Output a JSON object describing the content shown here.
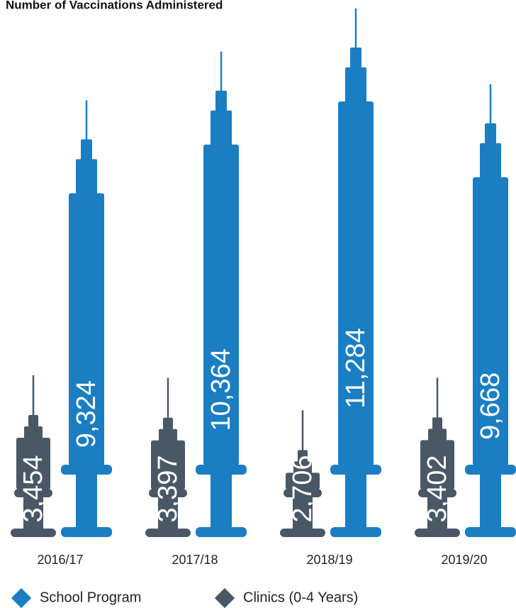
{
  "chart_data": {
    "type": "bar",
    "title": "Number of Vaccinations Administered",
    "categories": [
      "2016/17",
      "2017/18",
      "2018/19",
      "2019/20"
    ],
    "series": [
      {
        "name": "School Program",
        "color": "#1b7ec2",
        "values": [
          9324,
          10364,
          11284,
          9668
        ],
        "value_labels": [
          "9,324",
          "10,364",
          "11,284",
          "9,668"
        ]
      },
      {
        "name": "Clinics (0-4 Years)",
        "color": "#4a5866",
        "values": [
          3454,
          3397,
          2706,
          3402
        ],
        "value_labels": [
          "3,454",
          "3,397",
          "2,706",
          "3,402"
        ]
      }
    ],
    "legend": "bottom"
  }
}
